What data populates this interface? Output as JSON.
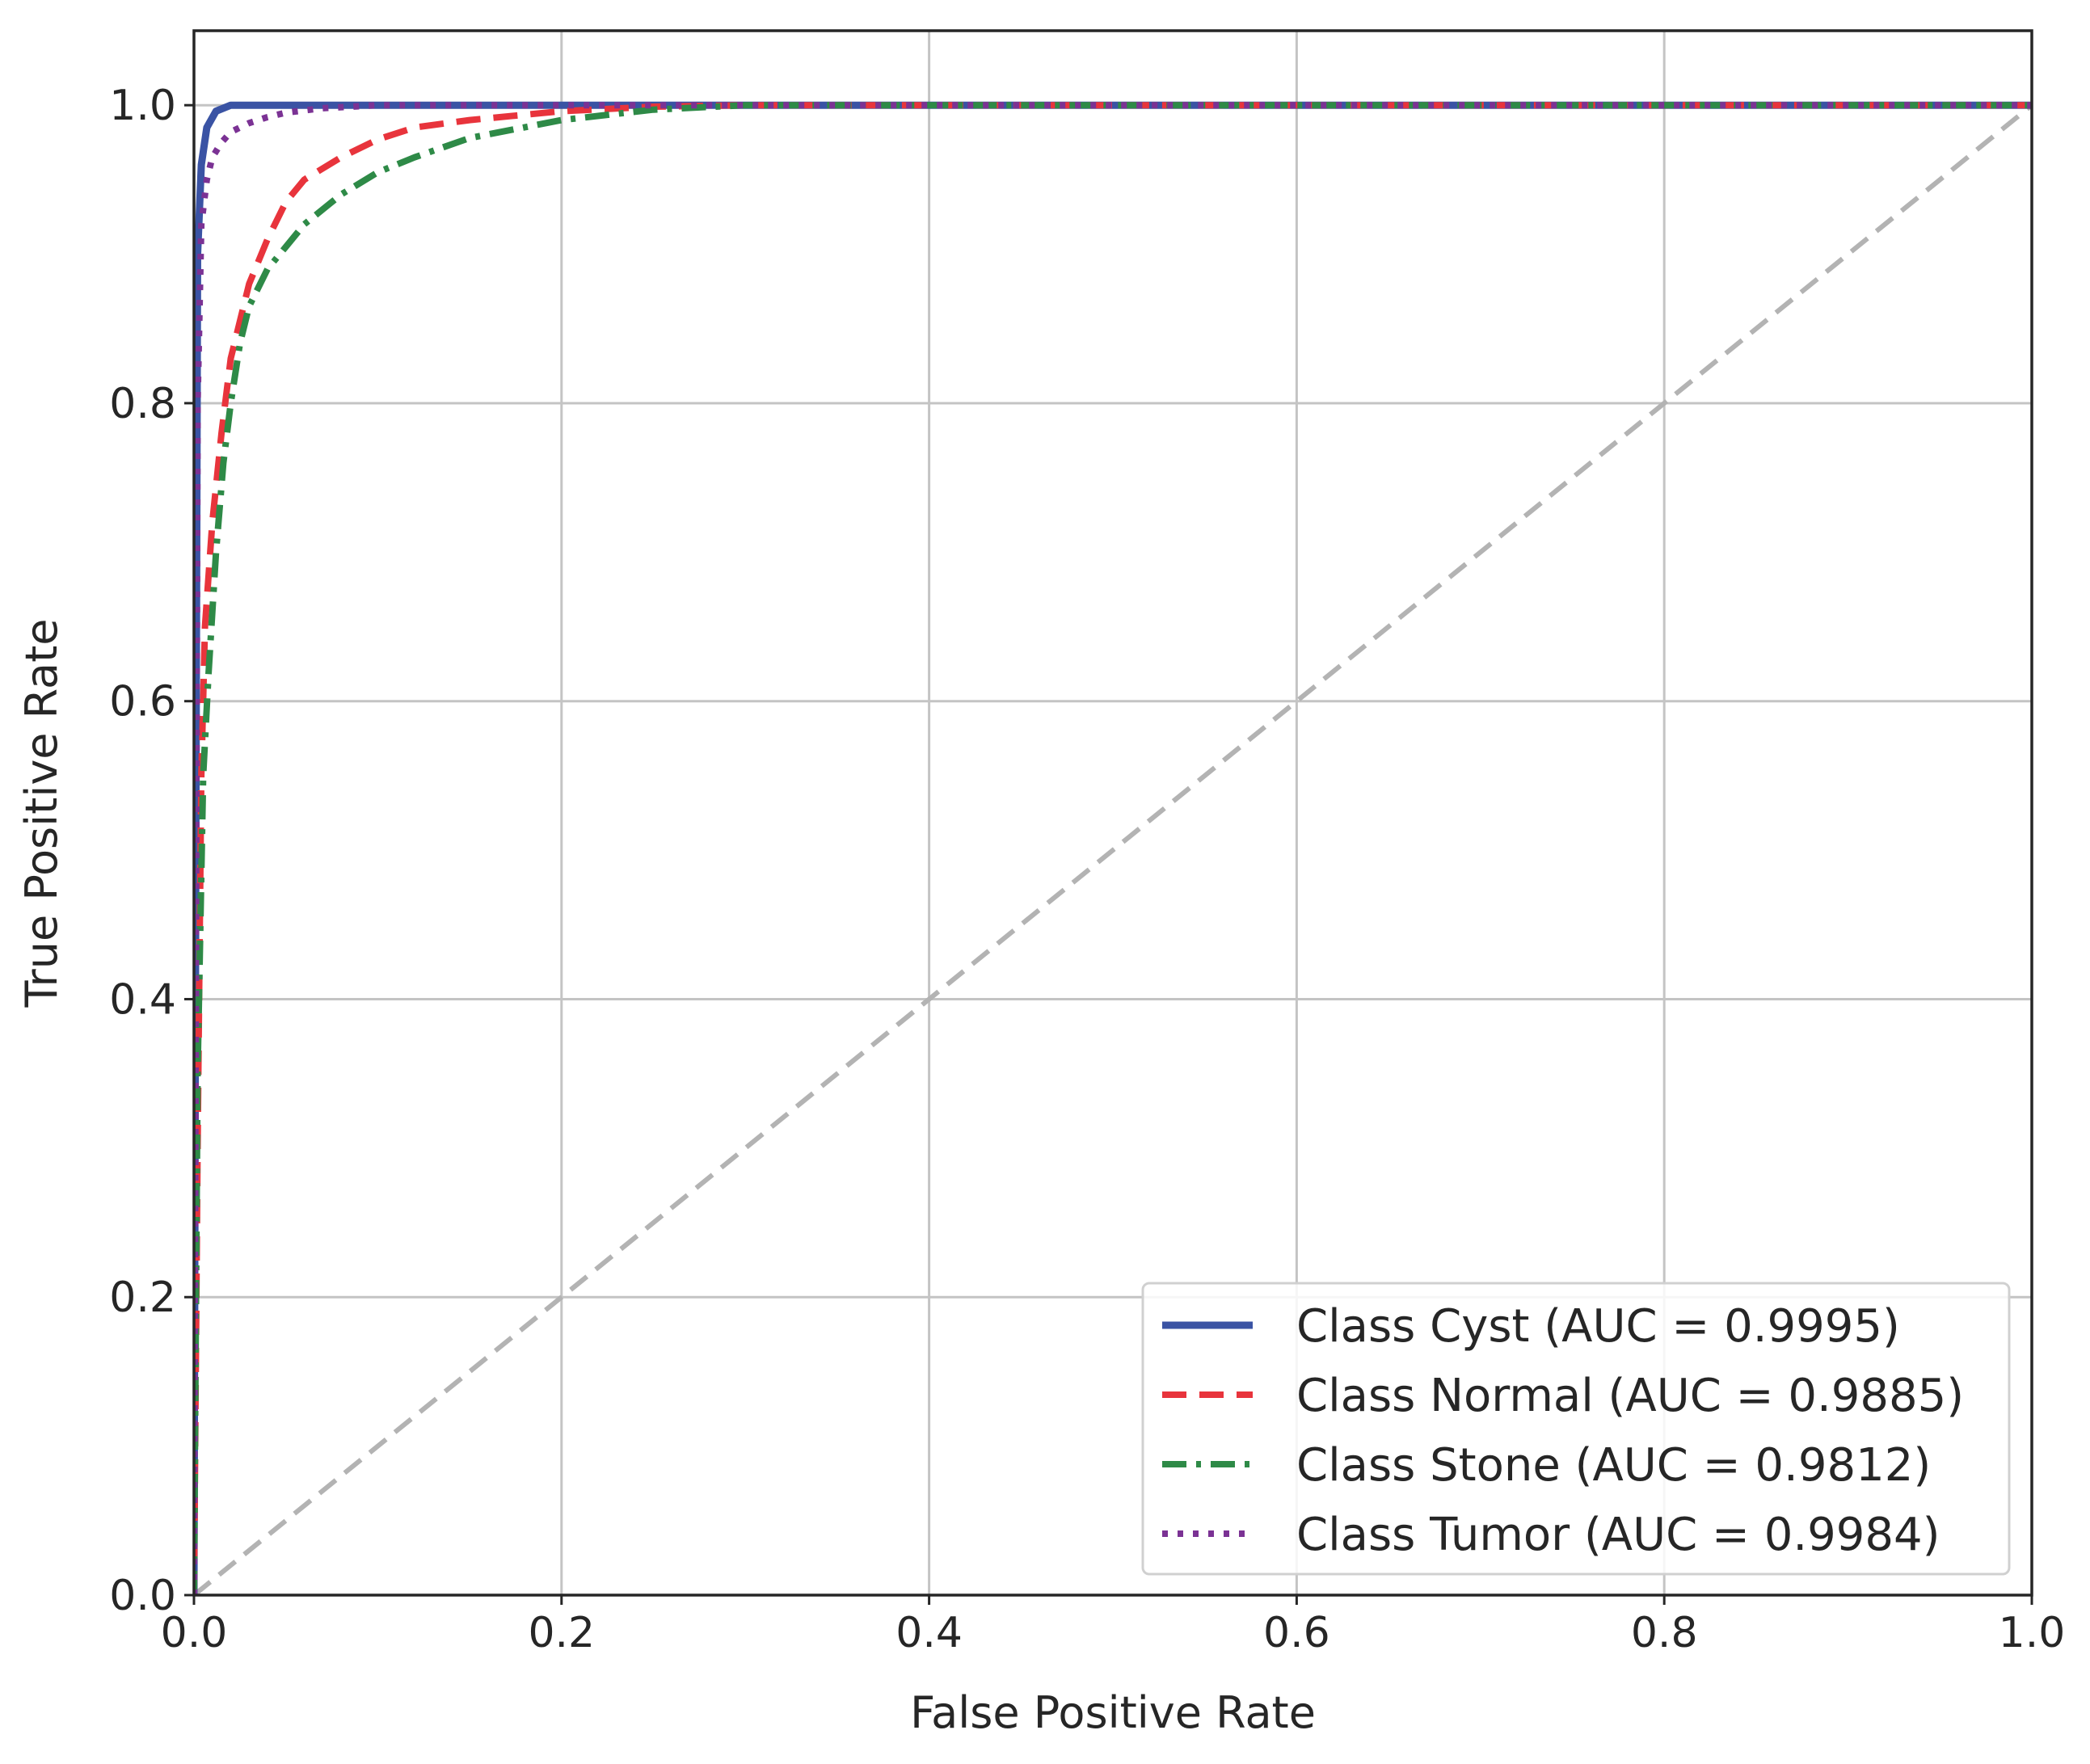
{
  "chart_data": {
    "type": "line",
    "title": "",
    "xlabel": "False Positive Rate",
    "ylabel": "True Positive Rate",
    "xlim": [
      0.0,
      1.0
    ],
    "ylim": [
      0.0,
      1.05
    ],
    "xticks": [
      "0.0",
      "0.2",
      "0.4",
      "0.6",
      "0.8",
      "1.0"
    ],
    "yticks": [
      "0.0",
      "0.2",
      "0.4",
      "0.6",
      "0.8",
      "1.0"
    ],
    "grid": true,
    "legend_position": "lower-right",
    "chance_line": {
      "x": [
        0,
        1
      ],
      "y": [
        0,
        1
      ],
      "color": "#b3b3b3",
      "style": "dashed"
    },
    "series": [
      {
        "name": "Class Cyst (AUC = 0.9995)",
        "color": "#3a53a4",
        "style": "solid",
        "x": [
          0,
          0.001,
          0.002,
          0.004,
          0.007,
          0.012,
          0.02,
          0.05,
          0.1,
          0.3,
          1.0
        ],
        "y": [
          0,
          0.5,
          0.9,
          0.96,
          0.985,
          0.996,
          1.0,
          1.0,
          1.0,
          1.0,
          1.0
        ]
      },
      {
        "name": "Class Normal (AUC = 0.9885)",
        "color": "#e8343c",
        "style": "dashed",
        "x": [
          0,
          0.002,
          0.004,
          0.006,
          0.01,
          0.015,
          0.02,
          0.03,
          0.04,
          0.05,
          0.06,
          0.08,
          0.1,
          0.12,
          0.15,
          0.2,
          0.25,
          0.3,
          0.5,
          1.0
        ],
        "y": [
          0,
          0.3,
          0.55,
          0.65,
          0.72,
          0.78,
          0.83,
          0.88,
          0.91,
          0.935,
          0.95,
          0.965,
          0.977,
          0.985,
          0.99,
          0.996,
          0.999,
          1.0,
          1.0,
          1.0
        ]
      },
      {
        "name": "Class Stone (AUC = 0.9812)",
        "color": "#2e8a47",
        "style": "dashdot",
        "x": [
          0,
          0.002,
          0.005,
          0.008,
          0.012,
          0.016,
          0.02,
          0.025,
          0.03,
          0.04,
          0.05,
          0.06,
          0.08,
          0.1,
          0.12,
          0.15,
          0.2,
          0.25,
          0.3,
          0.5,
          1.0
        ],
        "y": [
          0,
          0.35,
          0.55,
          0.62,
          0.7,
          0.76,
          0.8,
          0.84,
          0.865,
          0.89,
          0.905,
          0.92,
          0.94,
          0.955,
          0.965,
          0.978,
          0.99,
          0.997,
          1.0,
          1.0,
          1.0
        ]
      },
      {
        "name": "Class Tumor (AUC = 0.9984)",
        "color": "#7b3294",
        "style": "dotted",
        "x": [
          0,
          0.001,
          0.002,
          0.004,
          0.007,
          0.01,
          0.015,
          0.02,
          0.03,
          0.04,
          0.05,
          0.07,
          0.1,
          0.2,
          1.0
        ],
        "y": [
          0,
          0.4,
          0.8,
          0.92,
          0.95,
          0.965,
          0.975,
          0.982,
          0.988,
          0.992,
          0.995,
          0.998,
          1.0,
          1.0,
          1.0
        ]
      }
    ]
  }
}
